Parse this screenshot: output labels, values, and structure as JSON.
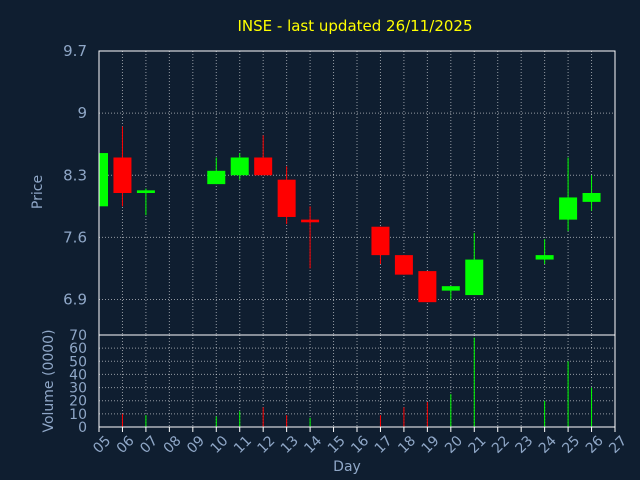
{
  "colors": {
    "background": "#0f1e30",
    "up": "#00ff00",
    "down": "#ff0000",
    "text": "#8fa7c7",
    "title": "#ffff00",
    "grid": "#ffffff",
    "axis": "#ffffff"
  },
  "chart_data": [
    {
      "type": "candlestick",
      "title": "INSE - last updated 26/11/2025",
      "ylabel": "Price",
      "ylim": [
        6.5,
        9.7
      ],
      "yticks": [
        9.7,
        9,
        8.3,
        7.6,
        6.9
      ],
      "ytick_labels": [
        "9.7",
        "9",
        "8.3",
        "7.6",
        "6.9"
      ],
      "grid": true,
      "days": [
        {
          "day": "05",
          "open": 7.95,
          "high": 8.55,
          "low": 7.95,
          "close": 8.55
        },
        {
          "day": "06",
          "open": 8.5,
          "high": 8.85,
          "low": 7.95,
          "close": 8.1
        },
        {
          "day": "07",
          "open": 8.1,
          "high": 8.15,
          "low": 7.85,
          "close": 8.13
        },
        {
          "day": "10",
          "open": 8.2,
          "high": 8.5,
          "low": 8.2,
          "close": 8.35
        },
        {
          "day": "11",
          "open": 8.3,
          "high": 8.55,
          "low": 8.25,
          "close": 8.5
        },
        {
          "day": "12",
          "open": 8.5,
          "high": 8.75,
          "low": 8.3,
          "close": 8.3
        },
        {
          "day": "13",
          "open": 8.25,
          "high": 8.4,
          "low": 7.75,
          "close": 7.83
        },
        {
          "day": "14",
          "open": 7.8,
          "high": 7.95,
          "low": 7.25,
          "close": 7.77
        },
        {
          "day": "17",
          "open": 7.72,
          "high": 7.72,
          "low": 7.3,
          "close": 7.4
        },
        {
          "day": "18",
          "open": 7.4,
          "high": 7.4,
          "low": 7.18,
          "close": 7.18
        },
        {
          "day": "19",
          "open": 7.22,
          "high": 7.22,
          "low": 6.87,
          "close": 6.87
        },
        {
          "day": "20",
          "open": 7.0,
          "high": 7.05,
          "low": 6.9,
          "close": 7.05
        },
        {
          "day": "21",
          "open": 6.95,
          "high": 7.65,
          "low": 6.95,
          "close": 7.35
        },
        {
          "day": "24",
          "open": 7.35,
          "high": 7.58,
          "low": 7.3,
          "close": 7.4
        },
        {
          "day": "25",
          "open": 7.8,
          "high": 8.5,
          "low": 7.67,
          "close": 8.05
        },
        {
          "day": "26",
          "open": 8.0,
          "high": 8.3,
          "low": 7.9,
          "close": 8.1
        }
      ]
    },
    {
      "type": "bar",
      "ylabel": "Volume (0000)",
      "xlabel": "Day",
      "ylim": [
        0,
        70
      ],
      "yticks": [
        70,
        60,
        50,
        40,
        30,
        20,
        10,
        0
      ],
      "ytick_labels": [
        "70",
        "60",
        "50",
        "40",
        "30",
        "20",
        "10",
        "0"
      ],
      "grid": true,
      "categories": [
        "05",
        "06",
        "07",
        "08",
        "09",
        "10",
        "11",
        "12",
        "13",
        "14",
        "15",
        "16",
        "17",
        "18",
        "19",
        "20",
        "21",
        "22",
        "23",
        "24",
        "25",
        "26",
        "27"
      ],
      "values": [
        {
          "day": "05",
          "value": 0,
          "direction": "up"
        },
        {
          "day": "06",
          "value": 10,
          "direction": "down"
        },
        {
          "day": "07",
          "value": 9,
          "direction": "up"
        },
        {
          "day": "10",
          "value": 8,
          "direction": "up"
        },
        {
          "day": "11",
          "value": 12,
          "direction": "up"
        },
        {
          "day": "12",
          "value": 15,
          "direction": "down"
        },
        {
          "day": "13",
          "value": 9,
          "direction": "down"
        },
        {
          "day": "14",
          "value": 7,
          "direction": "up"
        },
        {
          "day": "17",
          "value": 9,
          "direction": "down"
        },
        {
          "day": "18",
          "value": 15,
          "direction": "down"
        },
        {
          "day": "19",
          "value": 19,
          "direction": "down"
        },
        {
          "day": "20",
          "value": 25,
          "direction": "up"
        },
        {
          "day": "21",
          "value": 68,
          "direction": "up"
        },
        {
          "day": "24",
          "value": 20,
          "direction": "up"
        },
        {
          "day": "25",
          "value": 50,
          "direction": "up"
        },
        {
          "day": "26",
          "value": 30,
          "direction": "up"
        }
      ]
    }
  ]
}
